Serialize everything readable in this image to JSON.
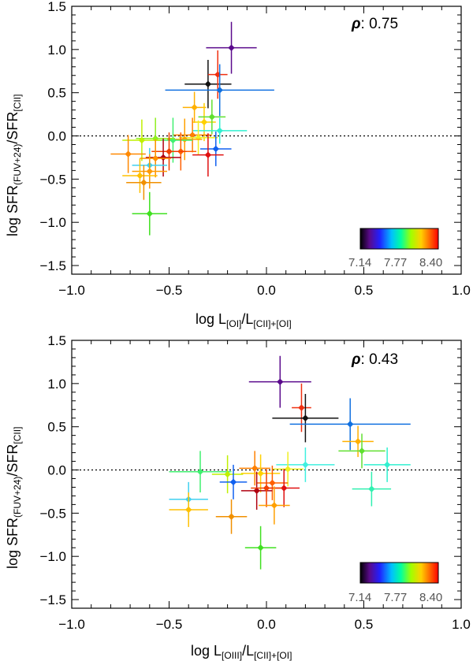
{
  "chart_data": [
    {
      "type": "scatter",
      "panel": "top",
      "xlabel_main": "log L",
      "xlabel_sub1": "[OI]",
      "xlabel_sep": "/L",
      "xlabel_sub2": "[CII]+[OI]",
      "ylabel_main": "log SFR",
      "ylabel_sub1": "(FUV+24)",
      "ylabel_sep": "/SFR",
      "ylabel_sub2": "[CII]",
      "xlim": [
        -1.0,
        1.0
      ],
      "ylim": [
        -1.6,
        1.5
      ],
      "xticks": [
        -1.0,
        -0.5,
        0.0,
        0.5,
        1.0
      ],
      "xtick_labels": [
        "−1.0",
        "−0.5",
        "0.0",
        "0.5",
        "1.0"
      ],
      "yticks": [
        -1.5,
        -1.0,
        -0.5,
        0.0,
        0.5,
        1.0,
        1.5
      ],
      "ytick_labels": [
        "−1.5",
        "−1.0",
        "−0.5",
        "0.0",
        "0.5",
        "1.0",
        "1.5"
      ],
      "reference_line_y": 0.0,
      "rho_symbol": "ρ",
      "rho_text": ": 0.75",
      "colorbar_labels": [
        "7.14",
        "7.77",
        "8.40"
      ],
      "points": [
        {
          "x": -0.18,
          "y": 1.02,
          "xerr": 0.13,
          "yerr": 0.3,
          "color": "#5a0a8c"
        },
        {
          "x": -0.3,
          "y": 0.6,
          "xerr": 0.12,
          "yerr": 0.28,
          "color": "#111111"
        },
        {
          "x": -0.25,
          "y": 0.71,
          "xerr": 0.05,
          "yerr": 0.28,
          "color": "#f03010"
        },
        {
          "x": -0.24,
          "y": 0.53,
          "xerr": 0.28,
          "yerr": 0.3,
          "color": "#1070e0"
        },
        {
          "x": -0.37,
          "y": 0.33,
          "xerr": 0.06,
          "yerr": 0.18,
          "color": "#ffb000"
        },
        {
          "x": -0.32,
          "y": 0.16,
          "xerr": 0.06,
          "yerr": 0.22,
          "color": "#ffd000"
        },
        {
          "x": -0.28,
          "y": 0.22,
          "xerr": 0.07,
          "yerr": 0.2,
          "color": "#60e030"
        },
        {
          "x": -0.24,
          "y": 0.06,
          "xerr": 0.14,
          "yerr": 0.15,
          "color": "#30f0d0"
        },
        {
          "x": -0.38,
          "y": 0.01,
          "xerr": 0.1,
          "yerr": 0.2,
          "color": "#ff8000"
        },
        {
          "x": -0.35,
          "y": -0.02,
          "xerr": 0.1,
          "yerr": 0.2,
          "color": "#f0f020"
        },
        {
          "x": -0.42,
          "y": -0.04,
          "xerr": 0.09,
          "yerr": 0.24,
          "color": "#ffa000"
        },
        {
          "x": -0.48,
          "y": -0.05,
          "xerr": 0.1,
          "yerr": 0.26,
          "color": "#40f070"
        },
        {
          "x": -0.57,
          "y": -0.03,
          "xerr": 0.1,
          "yerr": 0.24,
          "color": "#90f020"
        },
        {
          "x": -0.64,
          "y": -0.05,
          "xerr": 0.1,
          "yerr": 0.24,
          "color": "#c0f000"
        },
        {
          "x": -0.26,
          "y": -0.15,
          "xerr": 0.08,
          "yerr": 0.2,
          "color": "#1060f0"
        },
        {
          "x": -0.3,
          "y": -0.22,
          "xerr": 0.08,
          "yerr": 0.25,
          "color": "#e01010"
        },
        {
          "x": -0.44,
          "y": -0.18,
          "xerr": 0.08,
          "yerr": 0.22,
          "color": "#ff6000"
        },
        {
          "x": -0.5,
          "y": -0.18,
          "xerr": 0.09,
          "yerr": 0.22,
          "color": "#f04000"
        },
        {
          "x": -0.53,
          "y": -0.25,
          "xerr": 0.09,
          "yerr": 0.22,
          "color": "#b00010"
        },
        {
          "x": -0.57,
          "y": -0.26,
          "xerr": 0.08,
          "yerr": 0.22,
          "color": "#ff9000"
        },
        {
          "x": -0.71,
          "y": -0.21,
          "xerr": 0.09,
          "yerr": 0.22,
          "color": "#ff8800"
        },
        {
          "x": -0.6,
          "y": -0.34,
          "xerr": 0.09,
          "yerr": 0.2,
          "color": "#40d0f0"
        },
        {
          "x": -0.6,
          "y": -0.41,
          "xerr": 0.09,
          "yerr": 0.2,
          "color": "#ff9a00"
        },
        {
          "x": -0.65,
          "y": -0.46,
          "xerr": 0.09,
          "yerr": 0.2,
          "color": "#ffc000"
        },
        {
          "x": -0.63,
          "y": -0.54,
          "xerr": 0.09,
          "yerr": 0.2,
          "color": "#f09000"
        },
        {
          "x": -0.6,
          "y": -0.9,
          "xerr": 0.09,
          "yerr": 0.25,
          "color": "#40e020"
        }
      ]
    },
    {
      "type": "scatter",
      "panel": "bottom",
      "xlabel_main": "log L",
      "xlabel_sub1": "[OIII]",
      "xlabel_sep": "/L",
      "xlabel_sub2": "[CII]+[OI]",
      "ylabel_main": "log SFR",
      "ylabel_sub1": "(FUV+24)",
      "ylabel_sep": "/SFR",
      "ylabel_sub2": "[CII]",
      "xlim": [
        -1.0,
        1.0
      ],
      "ylim": [
        -1.6,
        1.5
      ],
      "xticks": [
        -1.0,
        -0.5,
        0.0,
        0.5,
        1.0
      ],
      "xtick_labels": [
        "−1.0",
        "−0.5",
        "0.0",
        "0.5",
        "1.0"
      ],
      "yticks": [
        -1.5,
        -1.0,
        -0.5,
        0.0,
        0.5,
        1.0,
        1.5
      ],
      "ytick_labels": [
        "−1.5",
        "−1.0",
        "−0.5",
        "0.0",
        "0.5",
        "1.0",
        "1.5"
      ],
      "reference_line_y": 0.0,
      "rho_symbol": "ρ",
      "rho_text": ": 0.43",
      "colorbar_labels": [
        "7.14",
        "7.77",
        "8.40"
      ],
      "points": [
        {
          "x": 0.07,
          "y": 1.02,
          "xerr": 0.16,
          "yerr": 0.3,
          "color": "#5a0a8c"
        },
        {
          "x": 0.18,
          "y": 0.72,
          "xerr": 0.05,
          "yerr": 0.28,
          "color": "#f03010"
        },
        {
          "x": 0.2,
          "y": 0.6,
          "xerr": 0.17,
          "yerr": 0.28,
          "color": "#111111"
        },
        {
          "x": 0.43,
          "y": 0.53,
          "xerr": 0.31,
          "yerr": 0.3,
          "color": "#1070e0"
        },
        {
          "x": 0.47,
          "y": 0.33,
          "xerr": 0.08,
          "yerr": 0.18,
          "color": "#ffb000"
        },
        {
          "x": 0.49,
          "y": 0.22,
          "xerr": 0.12,
          "yerr": 0.2,
          "color": "#60e030"
        },
        {
          "x": 0.62,
          "y": 0.06,
          "xerr": 0.12,
          "yerr": 0.2,
          "color": "#30f0d0"
        },
        {
          "x": 0.2,
          "y": 0.06,
          "xerr": 0.15,
          "yerr": 0.2,
          "color": "#40f0e0"
        },
        {
          "x": 0.54,
          "y": -0.22,
          "xerr": 0.1,
          "yerr": 0.2,
          "color": "#30f0b0"
        },
        {
          "x": -0.34,
          "y": -0.02,
          "xerr": 0.16,
          "yerr": 0.24,
          "color": "#40f070"
        },
        {
          "x": -0.2,
          "y": -0.05,
          "xerr": 0.08,
          "yerr": 0.22,
          "color": "#c0f000"
        },
        {
          "x": -0.06,
          "y": 0.02,
          "xerr": 0.08,
          "yerr": 0.2,
          "color": "#ff8000"
        },
        {
          "x": 0.11,
          "y": 0.01,
          "xerr": 0.08,
          "yerr": 0.2,
          "color": "#f0f020"
        },
        {
          "x": -0.03,
          "y": -0.04,
          "xerr": 0.1,
          "yerr": 0.22,
          "color": "#ffd000"
        },
        {
          "x": -0.17,
          "y": -0.14,
          "xerr": 0.07,
          "yerr": 0.2,
          "color": "#1060f0"
        },
        {
          "x": 0.03,
          "y": -0.15,
          "xerr": 0.08,
          "yerr": 0.2,
          "color": "#ff6000"
        },
        {
          "x": 0.09,
          "y": -0.21,
          "xerr": 0.08,
          "yerr": 0.22,
          "color": "#e01010"
        },
        {
          "x": -0.05,
          "y": -0.24,
          "xerr": 0.08,
          "yerr": 0.22,
          "color": "#b00010"
        },
        {
          "x": 0.0,
          "y": -0.21,
          "xerr": 0.08,
          "yerr": 0.22,
          "color": "#f04000"
        },
        {
          "x": 0.04,
          "y": -0.41,
          "xerr": 0.08,
          "yerr": 0.22,
          "color": "#ffa000"
        },
        {
          "x": -0.4,
          "y": -0.34,
          "xerr": 0.1,
          "yerr": 0.2,
          "color": "#40d0f0"
        },
        {
          "x": -0.4,
          "y": -0.46,
          "xerr": 0.1,
          "yerr": 0.2,
          "color": "#ffc000"
        },
        {
          "x": -0.18,
          "y": -0.54,
          "xerr": 0.08,
          "yerr": 0.2,
          "color": "#f09000"
        },
        {
          "x": -0.03,
          "y": -0.9,
          "xerr": 0.08,
          "yerr": 0.25,
          "color": "#40e020"
        }
      ]
    }
  ]
}
